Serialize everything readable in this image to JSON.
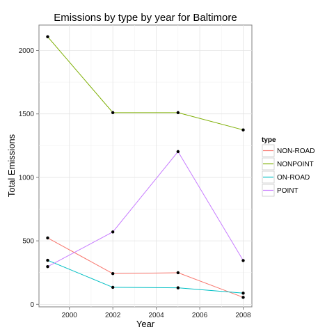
{
  "chart_data": {
    "type": "line",
    "title": "Emissions by type by year for Baltimore",
    "xlabel": "Year",
    "ylabel": "Total Emissions",
    "x": [
      1999,
      2002,
      2005,
      2008
    ],
    "xlim": [
      1998.6,
      2008.4
    ],
    "ylim": [
      -20,
      2200
    ],
    "xticks": [
      2000,
      2002,
      2004,
      2006,
      2008
    ],
    "yticks": [
      0,
      500,
      1000,
      1500,
      2000
    ],
    "grid": true,
    "legend": {
      "title": "type",
      "position": "right"
    },
    "series": [
      {
        "name": "NON-ROAD",
        "color": "#F8766D",
        "values": [
          523,
          242,
          249,
          55
        ]
      },
      {
        "name": "NONPOINT",
        "color": "#7CAE00",
        "values": [
          2108,
          1510,
          1510,
          1374
        ]
      },
      {
        "name": "ON-ROAD",
        "color": "#00BFC4",
        "values": [
          347,
          134,
          130,
          88
        ]
      },
      {
        "name": "POINT",
        "color": "#C77CFF",
        "values": [
          297,
          570,
          1203,
          345
        ]
      }
    ]
  }
}
